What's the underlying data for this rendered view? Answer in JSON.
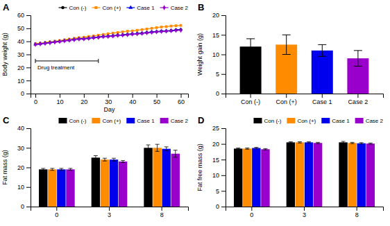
{
  "chart_data": [
    {
      "type": "line",
      "title": "A",
      "xlabel": "Day",
      "ylabel": "Body weight (g)",
      "x": [
        0,
        2,
        4,
        6,
        8,
        10,
        12,
        14,
        16,
        18,
        20,
        22,
        24,
        26,
        28,
        30,
        32,
        34,
        36,
        38,
        40,
        42,
        44,
        46,
        48,
        50,
        52,
        54,
        56,
        58,
        60
      ],
      "series": [
        {
          "name": "Con (-)",
          "color": "#000000",
          "marker": "circle",
          "values": [
            38.0,
            38.4,
            38.8,
            39.3,
            39.8,
            40.2,
            40.7,
            41.1,
            41.6,
            42.0,
            42.2,
            42.5,
            43.0,
            43.2,
            43.8,
            44.0,
            44.2,
            44.8,
            45.0,
            45.3,
            45.8,
            46.0,
            46.3,
            46.8,
            47.2,
            47.5,
            47.8,
            48.0,
            48.3,
            48.8,
            49.0
          ],
          "errors": [
            0.6,
            0.6,
            0.6,
            0.6,
            0.6,
            0.6,
            0.6,
            0.6,
            0.6,
            0.6,
            0.6,
            0.6,
            0.6,
            0.6,
            0.6,
            0.6,
            0.6,
            0.6,
            0.6,
            0.6,
            0.6,
            0.6,
            0.6,
            0.6,
            0.6,
            0.6,
            0.6,
            0.6,
            0.6,
            0.6,
            0.6
          ]
        },
        {
          "name": "Con (+)",
          "color": "#FF8C00",
          "marker": "square",
          "values": [
            38.2,
            38.6,
            39.1,
            39.6,
            40.1,
            40.6,
            41.2,
            41.7,
            42.3,
            42.8,
            43.2,
            43.7,
            44.2,
            44.7,
            45.3,
            45.8,
            46.3,
            46.8,
            47.3,
            47.8,
            48.0,
            48.5,
            49.0,
            49.5,
            50.0,
            50.5,
            51.0,
            51.3,
            51.7,
            52.0,
            52.2
          ],
          "errors": [
            0.6,
            0.6,
            0.6,
            0.6,
            0.6,
            0.6,
            0.6,
            0.6,
            0.6,
            0.6,
            0.6,
            0.6,
            0.6,
            0.6,
            0.6,
            0.6,
            0.6,
            0.6,
            0.6,
            0.6,
            0.6,
            0.6,
            0.6,
            0.6,
            0.6,
            0.6,
            0.6,
            0.6,
            0.6,
            0.6,
            0.6
          ]
        },
        {
          "name": "Case 1",
          "color": "#0000EE",
          "marker": "triangle",
          "values": [
            37.8,
            38.2,
            38.7,
            39.1,
            39.6,
            40.0,
            40.5,
            41.0,
            41.5,
            42.0,
            42.0,
            42.5,
            43.0,
            43.3,
            43.8,
            44.0,
            44.3,
            44.8,
            45.0,
            45.3,
            45.8,
            46.0,
            46.3,
            46.8,
            47.2,
            47.5,
            47.8,
            48.0,
            48.3,
            48.7,
            49.0
          ],
          "errors": [
            0.6,
            0.6,
            0.6,
            0.6,
            0.6,
            0.6,
            0.6,
            0.6,
            0.6,
            0.6,
            0.6,
            0.6,
            0.6,
            0.6,
            0.6,
            0.6,
            0.6,
            0.6,
            0.6,
            0.6,
            0.6,
            0.6,
            0.6,
            0.6,
            0.6,
            0.6,
            0.6,
            0.6,
            0.6,
            0.6,
            0.6
          ]
        },
        {
          "name": "Case 2",
          "color": "#9900CC",
          "marker": "diamond",
          "values": [
            37.5,
            37.9,
            38.4,
            38.8,
            39.3,
            39.8,
            40.3,
            40.8,
            41.2,
            41.7,
            41.8,
            42.2,
            42.7,
            43.0,
            43.5,
            43.7,
            44.0,
            44.5,
            44.7,
            45.0,
            45.5,
            45.7,
            46.0,
            46.5,
            46.8,
            47.2,
            47.5,
            47.8,
            48.0,
            48.3,
            48.5
          ],
          "errors": [
            0.6,
            0.6,
            0.6,
            0.6,
            0.6,
            0.6,
            0.6,
            0.6,
            0.6,
            0.6,
            0.6,
            0.6,
            0.6,
            0.6,
            0.6,
            0.6,
            0.6,
            0.6,
            0.6,
            0.6,
            0.6,
            0.6,
            0.6,
            0.6,
            0.6,
            0.6,
            0.6,
            0.6,
            0.6,
            0.6,
            0.6
          ]
        }
      ],
      "annotations": [
        {
          "text": "Drug treatment",
          "x_start": 0,
          "x_end": 26,
          "y": 25
        }
      ],
      "xlim": [
        -2,
        63
      ],
      "xticks": [
        0,
        10,
        20,
        30,
        40,
        50,
        60
      ],
      "ylim": [
        0,
        60
      ],
      "yticks": [
        0,
        10,
        20,
        30,
        40,
        50,
        60
      ],
      "legend": "upper right",
      "grid": false
    },
    {
      "type": "bar",
      "title": "B",
      "ylabel": "Weight gain (g)",
      "categories": [
        "Con (-)",
        "Con (+)",
        "Case 1",
        "Case 2"
      ],
      "values": [
        12.0,
        12.5,
        11.0,
        9.0
      ],
      "errors": [
        2.0,
        2.5,
        1.5,
        2.0
      ],
      "colors": [
        "#000000",
        "#FF8C00",
        "#0000EE",
        "#9900CC"
      ],
      "ylim": [
        0,
        20
      ],
      "yticks": [
        0,
        5,
        10,
        15,
        20
      ],
      "grid": false
    },
    {
      "type": "bar",
      "title": "C",
      "ylabel": "Fat mass (g)",
      "categories": [
        "0",
        "3",
        "8"
      ],
      "series": [
        {
          "name": "Con (-)",
          "color": "#000000",
          "values": [
            19.0,
            25.0,
            30.0
          ],
          "errors": [
            0.5,
            1.0,
            1.5
          ]
        },
        {
          "name": "Con (+)",
          "color": "#FF8C00",
          "values": [
            19.0,
            24.0,
            30.0
          ],
          "errors": [
            0.5,
            0.7,
            1.8
          ]
        },
        {
          "name": "Case 1",
          "color": "#0000EE",
          "values": [
            19.0,
            24.0,
            29.5
          ],
          "errors": [
            0.5,
            0.7,
            1.0
          ]
        },
        {
          "name": "Case 2",
          "color": "#9900CC",
          "values": [
            19.0,
            23.0,
            27.0
          ],
          "errors": [
            0.5,
            0.5,
            1.8
          ]
        }
      ],
      "ylim": [
        0,
        40
      ],
      "yticks": [
        0,
        10,
        20,
        30,
        40
      ],
      "legend": "upper right",
      "grid": false
    },
    {
      "type": "bar",
      "title": "D",
      "ylabel": "Fat free mass (g)",
      "categories": [
        "0",
        "3",
        "8"
      ],
      "series": [
        {
          "name": "Con (-)",
          "color": "#000000",
          "values": [
            18.5,
            20.5,
            20.5
          ],
          "errors": [
            0.2,
            0.2,
            0.3
          ]
        },
        {
          "name": "Con (+)",
          "color": "#FF8C00",
          "values": [
            18.5,
            20.5,
            20.3
          ],
          "errors": [
            0.2,
            0.2,
            0.2
          ]
        },
        {
          "name": "Case 1",
          "color": "#0000EE",
          "values": [
            18.7,
            20.5,
            20.2
          ],
          "errors": [
            0.2,
            0.2,
            0.2
          ]
        },
        {
          "name": "Case 2",
          "color": "#9900CC",
          "values": [
            18.3,
            20.3,
            20.1
          ],
          "errors": [
            0.2,
            0.2,
            0.2
          ]
        }
      ],
      "ylim": [
        0,
        25
      ],
      "yticks": [
        0,
        5,
        10,
        15,
        20,
        25
      ],
      "legend": "upper right",
      "grid": false
    }
  ]
}
